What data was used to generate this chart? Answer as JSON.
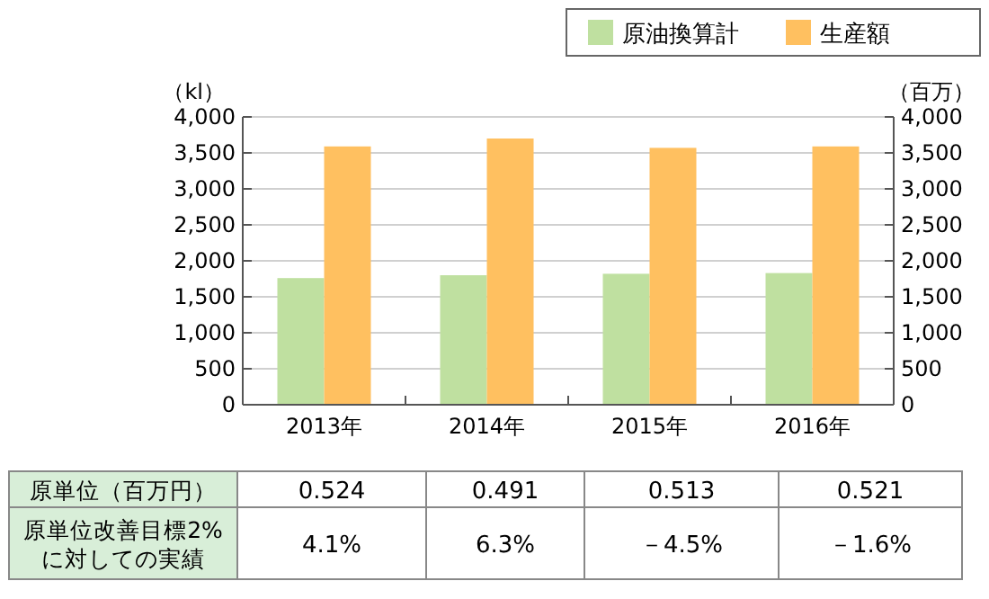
{
  "chart_data": {
    "type": "bar",
    "categories": [
      "2013年",
      "2014年",
      "2015年",
      "2016年"
    ],
    "series": [
      {
        "name": "原油換算計",
        "color": "#bfe0a0",
        "values": [
          1760,
          1800,
          1820,
          1830
        ]
      },
      {
        "name": "生産額",
        "color": "#ffc060",
        "values": [
          3590,
          3700,
          3570,
          3590
        ],
        "axis": "y2"
      }
    ],
    "ylabel": "（kl）",
    "y2label": "（百万）",
    "ylim": [
      0,
      4000
    ],
    "yticks": [
      0,
      {
        "value": 500,
        "label": "500"
      },
      {
        "value": 1000,
        "label": "1,000"
      },
      {
        "value": 1500,
        "label": "1,500"
      },
      {
        "value": 2000,
        "label": "2,000"
      },
      {
        "value": 2500,
        "label": "2,500"
      },
      {
        "value": 3000,
        "label": "3,000"
      },
      {
        "value": 3500,
        "label": "3,500"
      },
      {
        "value": 4000,
        "label": "4,000"
      }
    ],
    "y2lim": [
      0,
      4000
    ],
    "y2ticks": [
      0,
      {
        "value": 500,
        "label": "500"
      },
      {
        "value": 1000,
        "label": "1,000"
      },
      {
        "value": 1500,
        "label": "1,500"
      },
      {
        "value": 2000,
        "label": "2,000"
      },
      {
        "value": 2500,
        "label": "2,500"
      },
      {
        "value": 3000,
        "label": "3,000"
      },
      {
        "value": 3500,
        "label": "3,500"
      },
      {
        "value": 4000,
        "label": "4,000"
      }
    ],
    "grid": "y",
    "legend": "top right",
    "annotations": [
      "原単位（百万円）",
      "0.524",
      "0.491",
      "0.513",
      "0.521",
      "原単位改善目標2%\nに対しての実績",
      "4.1%",
      "6.3%",
      "－4.5%",
      "－1.6%"
    ]
  }
}
